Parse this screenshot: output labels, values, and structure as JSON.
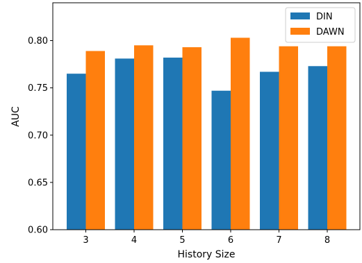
{
  "chart_data": {
    "type": "bar",
    "categories": [
      "3",
      "4",
      "5",
      "6",
      "7",
      "8"
    ],
    "series": [
      {
        "name": "DIN",
        "color": "#1f77b4",
        "values": [
          0.765,
          0.781,
          0.782,
          0.747,
          0.767,
          0.773
        ]
      },
      {
        "name": "DAWN",
        "color": "#ff7f0e",
        "values": [
          0.789,
          0.795,
          0.793,
          0.803,
          0.794,
          0.794
        ]
      }
    ],
    "xlabel": "History Size",
    "ylabel": "AUC",
    "ylim": [
      0.6,
      0.84
    ],
    "yticks": [
      "0.60",
      "0.65",
      "0.70",
      "0.75",
      "0.80"
    ],
    "legend_position": "upper-right",
    "grid": false
  }
}
